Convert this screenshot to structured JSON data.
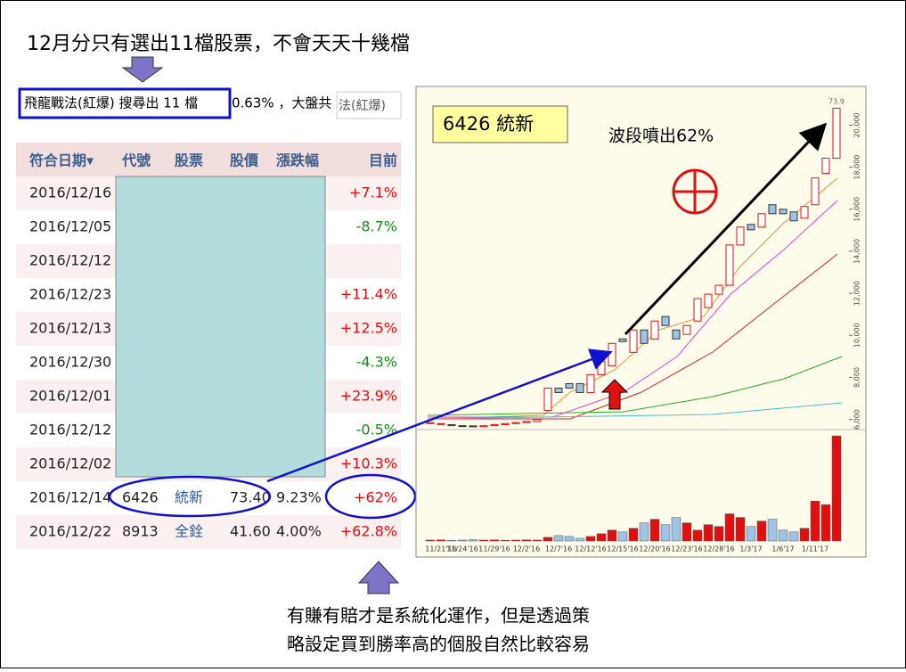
{
  "slide": {
    "title": "12月分只有選出11檔股票，不會天天十幾檔",
    "footer_line1": "有賺有賠才是系統化運作，但是透過策",
    "footer_line2": "略設定買到勝率高的個股自然比較容易"
  },
  "screener": {
    "header": "飛龍戰法(紅爆) 搜尋出 11 檔",
    "header_rest": "0.63% ，大盤共",
    "header_tab": "法(紅爆)",
    "table": {
      "columns": [
        "符合日期▾",
        "代號",
        "股票",
        "股價",
        "漲跌幅",
        "目前"
      ],
      "rows": [
        [
          "2016/12/16",
          "",
          "",
          "",
          "",
          "+7.1%"
        ],
        [
          "2016/12/05",
          "",
          "",
          "",
          "",
          "-8.7%"
        ],
        [
          "2016/12/12",
          "",
          "",
          "",
          "",
          ""
        ],
        [
          "2016/12/23",
          "",
          "",
          "",
          "",
          "+11.4%"
        ],
        [
          "2016/12/13",
          "",
          "",
          "",
          "",
          "+12.5%"
        ],
        [
          "2016/12/30",
          "",
          "",
          "",
          "",
          "-4.3%"
        ],
        [
          "2016/12/01",
          "",
          "",
          "",
          "",
          "+23.9%"
        ],
        [
          "2016/12/12",
          "",
          "",
          "",
          "",
          "-0.5%"
        ],
        [
          "2016/12/02",
          "",
          "",
          "",
          "",
          "+10.3%"
        ],
        [
          "2016/12/14",
          "6426",
          "統新",
          "73.40",
          "9.23%",
          "+62%"
        ],
        [
          "2016/12/22",
          "8913",
          "全銓",
          "41.60",
          "4.00%",
          "+62.8%"
        ]
      ]
    }
  },
  "chart_data": {
    "type": "candlestick",
    "stock_label": "6426 統新",
    "annotation": "波段噴出62%",
    "top_label": "73.9",
    "categories": [
      null,
      "11/21'16",
      null,
      "11/24'16",
      null,
      null,
      "11/29'16",
      null,
      null,
      "12/2'16",
      null,
      null,
      "12/7'16",
      null,
      null,
      "12/12'16",
      null,
      null,
      "12/15'16",
      null,
      null,
      "12/20'16",
      null,
      null,
      "12/23'16",
      null,
      null,
      "12/28'16",
      null,
      null,
      "1/3'17",
      null,
      null,
      "1/6'17",
      null,
      null,
      "1/11'17",
      null,
      null
    ],
    "open": [
      5800,
      5780,
      5750,
      5700,
      5690,
      5650,
      5700,
      5750,
      5800,
      5850,
      5900,
      6426,
      7489,
      7700,
      7702,
      7277,
      8128,
      8553,
      9830,
      9191,
      10255,
      9830,
      10894,
      10255,
      10043,
      10681,
      11319,
      11957,
      12383,
      14298,
      15277,
      15149,
      16213,
      16000,
      15872,
      15574,
      16213,
      17702,
      18426
    ],
    "close": [
      5850,
      5800,
      5700,
      5690,
      5650,
      5700,
      5750,
      5800,
      5850,
      5900,
      6000,
      7489,
      7277,
      7489,
      7277,
      8128,
      8766,
      9617,
      9702,
      10255,
      9617,
      10681,
      10468,
      9830,
      10468,
      11745,
      11957,
      12383,
      14298,
      15149,
      15021,
      15787,
      15787,
      15787,
      15447,
      16128,
      17489,
      18426,
      20809
    ],
    "volume": [
      50,
      60,
      40,
      50,
      70,
      50,
      60,
      40,
      50,
      60,
      50,
      200,
      300,
      250,
      150,
      250,
      400,
      600,
      500,
      700,
      1000,
      1200,
      900,
      1300,
      1000,
      600,
      900,
      800,
      1500,
      1300,
      800,
      1100,
      1200,
      600,
      500,
      700,
      2200,
      2000,
      5800
    ],
    "ylim": [
      5600,
      21800
    ],
    "yticks": [
      {
        "value": 6000,
        "label": "6,000"
      },
      {
        "value": 8000,
        "label": "8,000"
      },
      {
        "value": 10000,
        "label": "10,000"
      },
      {
        "value": 12000,
        "label": "12,000"
      },
      {
        "value": 14000,
        "label": "14,000"
      },
      {
        "value": 16000,
        "label": "16,000"
      },
      {
        "value": 18000,
        "label": "18,000"
      },
      {
        "value": 20000,
        "label": "20,000"
      }
    ],
    "volume_lim": [
      0,
      6000
    ],
    "up_color": "#e01010",
    "down_color": "#9dc3e6"
  }
}
